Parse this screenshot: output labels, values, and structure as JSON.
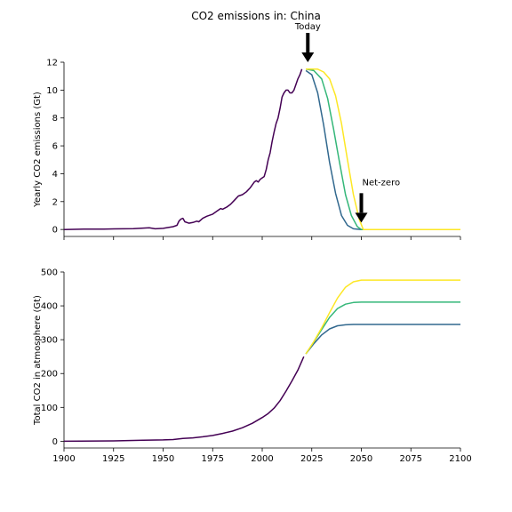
{
  "title": "CO2 emissions in: China",
  "annotations": {
    "today": "Today",
    "net_zero": "Net-zero"
  },
  "colors": {
    "history": "#440154",
    "path1": "#31688e",
    "path2": "#35b779",
    "path3": "#fde725"
  },
  "chart_data": [
    {
      "type": "line",
      "title": "CO2 emissions in: China",
      "ylabel": "Yearly CO2 emissions (Gt)",
      "xlim": [
        1900,
        2100
      ],
      "ylim": [
        -0.5,
        12
      ],
      "yticks": [
        0,
        2,
        4,
        6,
        8,
        10,
        12
      ],
      "xticks": [
        1900,
        1925,
        1950,
        1975,
        2000,
        2025,
        2050,
        2075,
        2100
      ],
      "series": [
        {
          "values": [
            [
              1900,
              0.0
            ],
            [
              1910,
              0.02
            ],
            [
              1920,
              0.03
            ],
            [
              1930,
              0.05
            ],
            [
              1935,
              0.06
            ],
            [
              1940,
              0.1
            ],
            [
              1943,
              0.12
            ],
            [
              1946,
              0.05
            ],
            [
              1950,
              0.08
            ],
            [
              1955,
              0.2
            ],
            [
              1957,
              0.3
            ],
            [
              1958,
              0.6
            ],
            [
              1959,
              0.75
            ],
            [
              1960,
              0.8
            ],
            [
              1961,
              0.55
            ],
            [
              1963,
              0.45
            ],
            [
              1965,
              0.5
            ],
            [
              1967,
              0.6
            ],
            [
              1968,
              0.55
            ],
            [
              1970,
              0.8
            ],
            [
              1972,
              0.95
            ],
            [
              1975,
              1.1
            ],
            [
              1977,
              1.3
            ],
            [
              1979,
              1.5
            ],
            [
              1980,
              1.45
            ],
            [
              1982,
              1.6
            ],
            [
              1984,
              1.8
            ],
            [
              1986,
              2.1
            ],
            [
              1988,
              2.4
            ],
            [
              1990,
              2.5
            ],
            [
              1992,
              2.7
            ],
            [
              1994,
              3.0
            ],
            [
              1996,
              3.4
            ],
            [
              1997,
              3.5
            ],
            [
              1998,
              3.4
            ],
            [
              1999,
              3.6
            ],
            [
              2000,
              3.7
            ],
            [
              2001,
              3.8
            ],
            [
              2002,
              4.3
            ],
            [
              2003,
              5.0
            ],
            [
              2004,
              5.5
            ],
            [
              2005,
              6.3
            ],
            [
              2006,
              7.0
            ],
            [
              2007,
              7.6
            ],
            [
              2008,
              8.0
            ],
            [
              2009,
              8.7
            ],
            [
              2010,
              9.5
            ],
            [
              2011,
              9.8
            ],
            [
              2012,
              10.0
            ],
            [
              2013,
              10.0
            ],
            [
              2014,
              9.8
            ],
            [
              2015,
              9.8
            ],
            [
              2016,
              10.0
            ],
            [
              2017,
              10.4
            ],
            [
              2018,
              10.8
            ],
            [
              2019,
              11.1
            ],
            [
              2020,
              11.5
            ]
          ]
        },
        {
          "values": [
            [
              2022,
              11.4
            ],
            [
              2025,
              11.1
            ],
            [
              2028,
              9.8
            ],
            [
              2031,
              7.5
            ],
            [
              2034,
              4.8
            ],
            [
              2037,
              2.6
            ],
            [
              2040,
              1.0
            ],
            [
              2043,
              0.3
            ],
            [
              2046,
              0.05
            ],
            [
              2050,
              0.0
            ],
            [
              2100,
              0.0
            ]
          ]
        },
        {
          "values": [
            [
              2022,
              11.5
            ],
            [
              2026,
              11.4
            ],
            [
              2030,
              10.8
            ],
            [
              2033,
              9.4
            ],
            [
              2036,
              7.2
            ],
            [
              2039,
              4.8
            ],
            [
              2042,
              2.5
            ],
            [
              2045,
              1.0
            ],
            [
              2048,
              0.2
            ],
            [
              2050,
              0.0
            ],
            [
              2100,
              0.0
            ]
          ]
        },
        {
          "values": [
            [
              2022,
              11.5
            ],
            [
              2028,
              11.5
            ],
            [
              2031,
              11.3
            ],
            [
              2034,
              10.8
            ],
            [
              2037,
              9.6
            ],
            [
              2040,
              7.6
            ],
            [
              2043,
              5.0
            ],
            [
              2046,
              2.5
            ],
            [
              2049,
              0.7
            ],
            [
              2051,
              0.0
            ],
            [
              2100,
              0.0
            ]
          ]
        }
      ],
      "annotations": [
        {
          "text": "Today",
          "x": 2023,
          "arrow_tip_y": 12
        },
        {
          "text": "Net-zero",
          "x": 2050,
          "arrow_tip_y": 0.5
        }
      ]
    },
    {
      "type": "line",
      "ylabel": "Total CO2 in atmosphere (Gt)",
      "xlabel": "",
      "xlim": [
        1900,
        2100
      ],
      "ylim": [
        -20,
        500
      ],
      "yticks": [
        0,
        100,
        200,
        300,
        400,
        500
      ],
      "xticks": [
        1900,
        1925,
        1950,
        1975,
        2000,
        2025,
        2050,
        2075,
        2100
      ],
      "series": [
        {
          "values": [
            [
              1900,
              0
            ],
            [
              1925,
              1
            ],
            [
              1940,
              3
            ],
            [
              1950,
              4
            ],
            [
              1955,
              5
            ],
            [
              1960,
              8
            ],
            [
              1965,
              10
            ],
            [
              1970,
              13
            ],
            [
              1975,
              17
            ],
            [
              1980,
              23
            ],
            [
              1985,
              30
            ],
            [
              1990,
              40
            ],
            [
              1995,
              53
            ],
            [
              2000,
              70
            ],
            [
              2003,
              82
            ],
            [
              2006,
              98
            ],
            [
              2009,
              120
            ],
            [
              2012,
              148
            ],
            [
              2015,
              178
            ],
            [
              2018,
              210
            ],
            [
              2021,
              250
            ]
          ]
        },
        {
          "values": [
            [
              2022,
              258
            ],
            [
              2026,
              288
            ],
            [
              2030,
              314
            ],
            [
              2034,
              332
            ],
            [
              2038,
              341
            ],
            [
              2042,
              344
            ],
            [
              2046,
              345
            ],
            [
              2050,
              345
            ],
            [
              2100,
              345
            ]
          ]
        },
        {
          "values": [
            [
              2022,
              258
            ],
            [
              2026,
              293
            ],
            [
              2030,
              330
            ],
            [
              2034,
              366
            ],
            [
              2038,
              392
            ],
            [
              2042,
              405
            ],
            [
              2046,
              410
            ],
            [
              2050,
              411
            ],
            [
              2100,
              411
            ]
          ]
        },
        {
          "values": [
            [
              2022,
              258
            ],
            [
              2026,
              294
            ],
            [
              2030,
              335
            ],
            [
              2034,
              380
            ],
            [
              2038,
              423
            ],
            [
              2042,
              455
            ],
            [
              2046,
              471
            ],
            [
              2050,
              476
            ],
            [
              2100,
              476
            ]
          ]
        }
      ]
    }
  ]
}
